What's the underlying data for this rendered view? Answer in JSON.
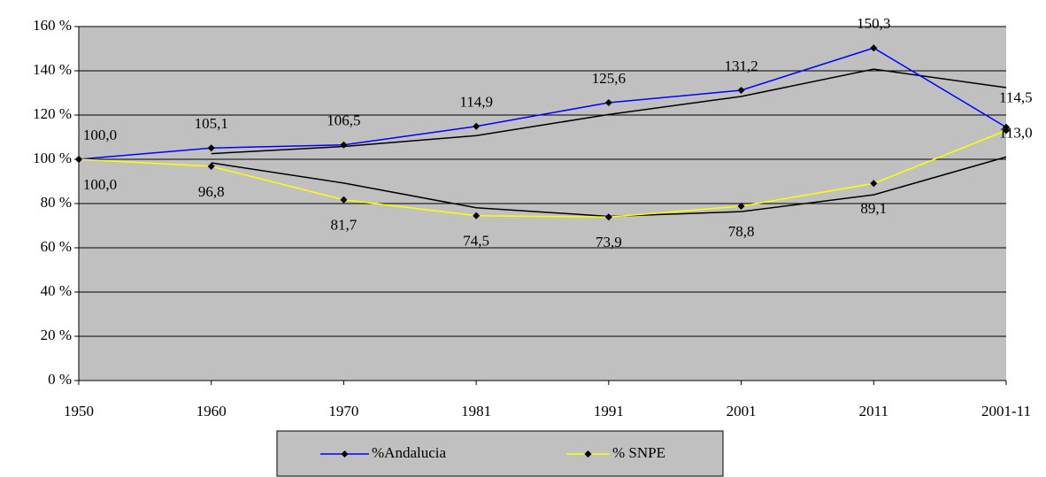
{
  "chart_data": {
    "type": "line",
    "categories": [
      "1950",
      "1960",
      "1970",
      "1981",
      "1991",
      "2001",
      "2011",
      "2001-11"
    ],
    "series": [
      {
        "name": "%Andalucia",
        "color": "#0000ff",
        "values": [
          100.0,
          105.1,
          106.5,
          114.9,
          125.6,
          131.2,
          150.3,
          114.5
        ],
        "value_labels": [
          "100,0",
          "105,1",
          "106,5",
          "114,9",
          "125,6",
          "131,2",
          "150,3",
          "114,5"
        ]
      },
      {
        "name": "% SNPE",
        "color": "#ffff00",
        "values": [
          100.0,
          96.8,
          81.7,
          74.5,
          73.9,
          78.8,
          89.1,
          113.0
        ],
        "value_labels": [
          "100,0",
          "96,8",
          "81,7",
          "74,5",
          "73,9",
          "78,8",
          "89,1",
          "113,0"
        ]
      }
    ],
    "trendlines": [
      {
        "color": "#000000",
        "values": [
          null,
          102.55,
          105.8,
          110.7,
          120.25,
          128.4,
          140.75,
          132.4
        ]
      },
      {
        "color": "#000000",
        "values": [
          null,
          98.4,
          89.25,
          78.1,
          74.2,
          76.35,
          83.95,
          101.05
        ]
      }
    ],
    "ylim": [
      0,
      160
    ],
    "yticks": [
      {
        "value": 0,
        "label": "0 %"
      },
      {
        "value": 20,
        "label": "20 %"
      },
      {
        "value": 40,
        "label": "40 %"
      },
      {
        "value": 60,
        "label": "60 %"
      },
      {
        "value": 80,
        "label": "80 %"
      },
      {
        "value": 100,
        "label": "100 %"
      },
      {
        "value": 120,
        "label": "120 %"
      },
      {
        "value": 140,
        "label": "140 %"
      },
      {
        "value": 160,
        "label": "160 %"
      }
    ],
    "grid": true,
    "plot_background": "#c0c0c0",
    "marker_color": "#000000",
    "legend": "bottom"
  }
}
